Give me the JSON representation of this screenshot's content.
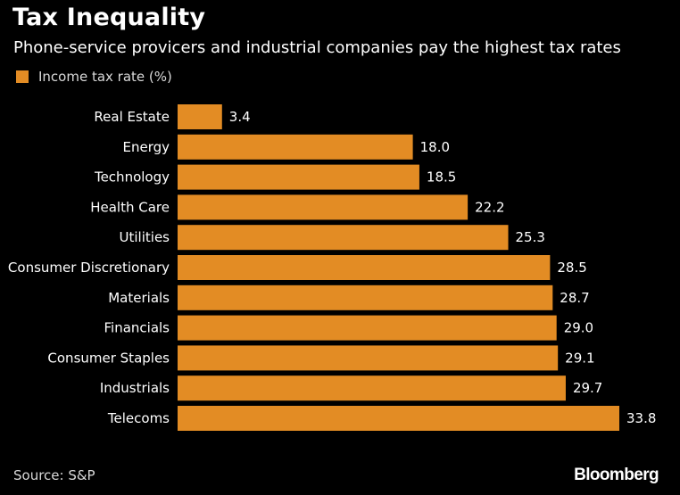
{
  "colors": {
    "background": "#000000",
    "bar": "#E38C24",
    "text": "#FFFFFF",
    "muted": "#D9D9D9"
  },
  "title": "Tax Inequality",
  "subtitle": "Phone-service provicers and industrial companies pay the highest tax rates",
  "source": "Source: S&P",
  "brand": "Bloomberg",
  "chart_data": {
    "type": "bar",
    "orientation": "horizontal",
    "categories": [
      "Real Estate",
      "Energy",
      "Technology",
      "Health Care",
      "Utilities",
      "Consumer Discretionary",
      "Materials",
      "Financials",
      "Consumer Staples",
      "Industrials",
      "Telecoms"
    ],
    "series": [
      {
        "name": "Income tax rate (%)",
        "values": [
          3.4,
          18.0,
          18.5,
          22.2,
          25.3,
          28.5,
          28.7,
          29.0,
          29.1,
          29.7,
          33.8
        ]
      }
    ],
    "data_labels": [
      "3.4",
      "18.0",
      "18.5",
      "22.2",
      "25.3",
      "28.5",
      "28.7",
      "29.0",
      "29.1",
      "29.7",
      "33.8"
    ],
    "xlim": [
      0,
      33.8
    ],
    "legend": "top-left",
    "grid": false
  }
}
